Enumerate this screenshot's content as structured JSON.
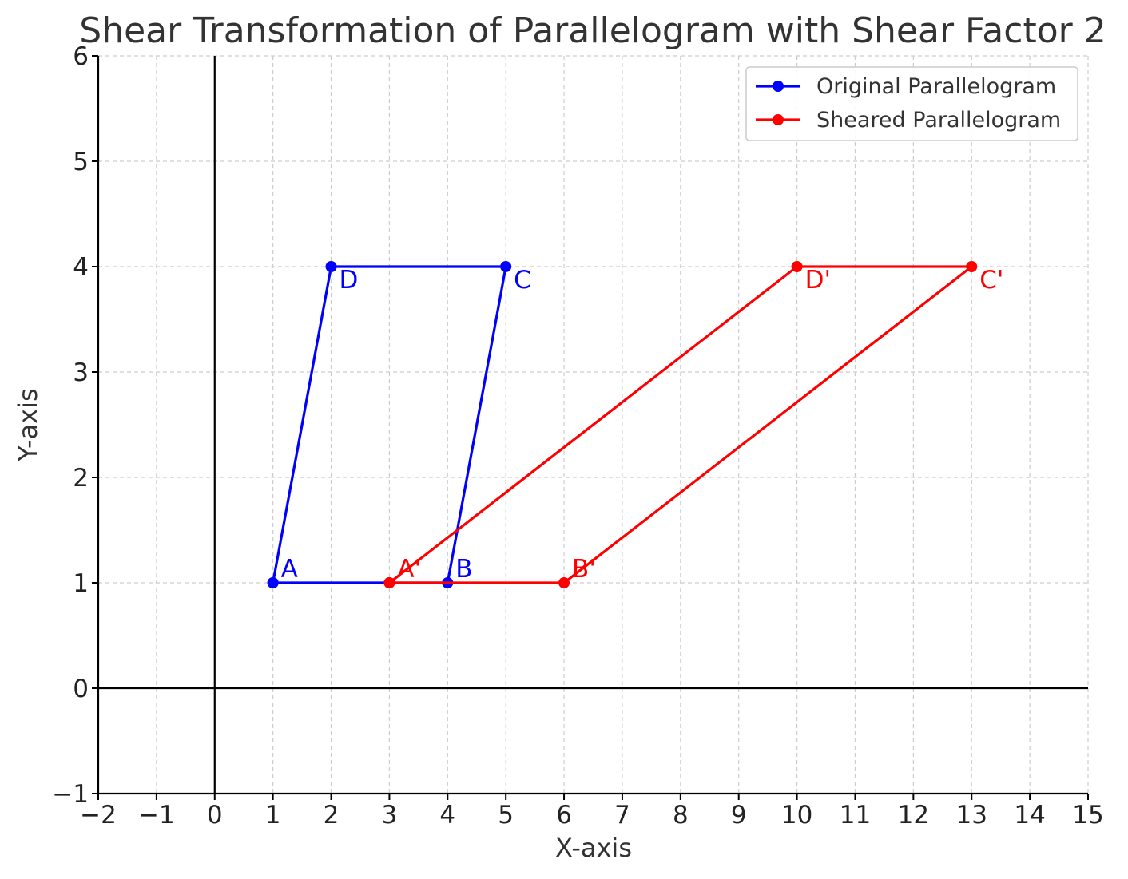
{
  "chart_data": {
    "type": "line",
    "title": "Shear Transformation of Parallelogram with Shear Factor 2",
    "xlabel": "X-axis",
    "ylabel": "Y-axis",
    "xlim": [
      -2,
      15
    ],
    "ylim": [
      -1,
      6
    ],
    "xticks": [
      -2,
      -1,
      0,
      1,
      2,
      3,
      4,
      5,
      6,
      7,
      8,
      9,
      10,
      11,
      12,
      13,
      14,
      15
    ],
    "yticks": [
      -1,
      0,
      1,
      2,
      3,
      4,
      5,
      6
    ],
    "grid": true,
    "grid_style": "dashed",
    "zero_axes": true,
    "legend_position": "top-right",
    "series": [
      {
        "name": "Original Parallelogram",
        "color": "#0000ff",
        "marker": "circle",
        "points": [
          {
            "x": 1,
            "y": 1,
            "label": "A"
          },
          {
            "x": 4,
            "y": 1,
            "label": "B"
          },
          {
            "x": 5,
            "y": 4,
            "label": "C"
          },
          {
            "x": 2,
            "y": 4,
            "label": "D"
          },
          {
            "x": 1,
            "y": 1,
            "label": ""
          }
        ]
      },
      {
        "name": "Sheared Parallelogram",
        "color": "#ff0000",
        "marker": "circle",
        "points": [
          {
            "x": 3,
            "y": 1,
            "label": "A'"
          },
          {
            "x": 6,
            "y": 1,
            "label": "B'"
          },
          {
            "x": 13,
            "y": 4,
            "label": "C'"
          },
          {
            "x": 10,
            "y": 4,
            "label": "D'"
          },
          {
            "x": 3,
            "y": 1,
            "label": ""
          }
        ]
      }
    ]
  }
}
